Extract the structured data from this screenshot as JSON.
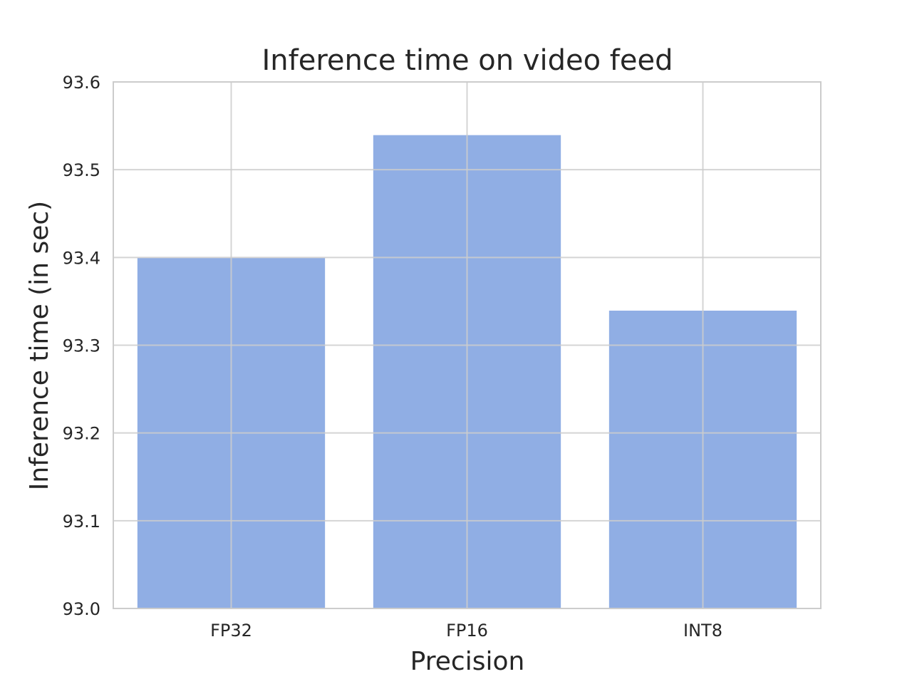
{
  "chart_data": {
    "type": "bar",
    "title": "Inference time on video feed",
    "xlabel": "Precision",
    "ylabel": "Inference time (in sec)",
    "categories": [
      "FP32",
      "FP16",
      "INT8"
    ],
    "values": [
      93.4,
      93.54,
      93.34
    ],
    "ylim": [
      93.0,
      93.6
    ],
    "yticks": [
      "93.0",
      "93.1",
      "93.2",
      "93.3",
      "93.4",
      "93.5",
      "93.6"
    ],
    "grid": true,
    "colors": {
      "bar": "#6b93db",
      "grid": "#cccccc",
      "frame": "#cccccc",
      "background": "#ffffff"
    }
  }
}
